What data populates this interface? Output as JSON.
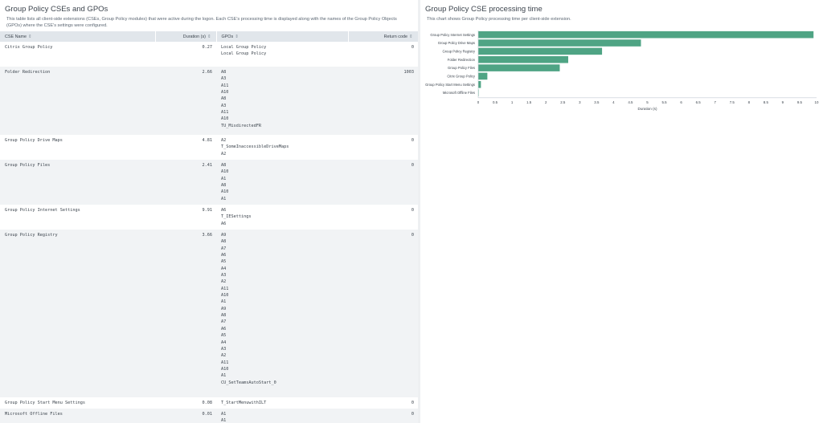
{
  "left_panel": {
    "title": "Group Policy CSEs and GPOs",
    "description": "This table lists all client-side extensions (CSEs, Group Policy modules) that were active during the logon. Each CSE's processing time is displayed along with the names of the Group Policy Objects (GPOs) where the CSE's settings were configured.",
    "columns": [
      {
        "label": "CSE Name",
        "sort_icon": "sort-icon"
      },
      {
        "label": "Duration (s)",
        "sort_icon": "sort-icon"
      },
      {
        "label": "GPOs",
        "sort_icon": "sort-icon"
      },
      {
        "label": "Return code",
        "sort_icon": "sort-icon"
      }
    ],
    "rows": [
      {
        "cse": "Citrix Group Policy",
        "duration": "0.27",
        "gpos": [
          "Local Group Policy",
          "Local Group Policy"
        ],
        "return_code": "0"
      },
      {
        "cse": "Folder Redirection",
        "duration": "2.66",
        "gpos": [
          "A8",
          "A3",
          "A11",
          "A10",
          "A8",
          "A3",
          "A11",
          "A10",
          "TU_MisdirectedFR"
        ],
        "return_code": "1003"
      },
      {
        "cse": "Group Policy Drive Maps",
        "duration": "4.81",
        "gpos": [
          "A2",
          "T_SomeInaccessibleDriveMaps",
          "A2"
        ],
        "return_code": "0"
      },
      {
        "cse": "Group Policy Files",
        "duration": "2.41",
        "gpos": [
          "A8",
          "A10",
          "A1",
          "A8",
          "A10",
          "A1"
        ],
        "return_code": "0"
      },
      {
        "cse": "Group Policy Internet Settings",
        "duration": "9.91",
        "gpos": [
          "A6",
          "T_IESettings",
          "A6"
        ],
        "return_code": "0"
      },
      {
        "cse": "Group Policy Registry",
        "duration": "3.66",
        "gpos": [
          "A9",
          "A8",
          "A7",
          "A6",
          "A5",
          "A4",
          "A3",
          "A2",
          "A11",
          "A10",
          "A1",
          "A9",
          "A8",
          "A7",
          "A6",
          "A5",
          "A4",
          "A3",
          "A2",
          "A11",
          "A10",
          "A1",
          "CU_SetTeamsAutoStart_0"
        ],
        "return_code": "0"
      },
      {
        "cse": "Group Policy Start Menu Settings",
        "duration": "0.08",
        "gpos": [
          "T_StartMenuwithILT"
        ],
        "return_code": "0"
      },
      {
        "cse": "Microsoft Offline Files",
        "duration": "0.01",
        "gpos": [
          "A1",
          "A1"
        ],
        "return_code": "0"
      }
    ]
  },
  "right_panel": {
    "title": "Group Policy CSE processing time",
    "description": "This chart shows Group Policy processing time per client-side extension."
  },
  "chart_data": {
    "type": "bar",
    "orientation": "horizontal",
    "categories": [
      "Group Policy Internet Settings",
      "Group Policy Drive Maps",
      "Group Policy Registry",
      "Folder Redirection",
      "Group Policy Files",
      "Citrix Group Policy",
      "Group Policy Start Menu Settings",
      "Microsoft Offline Files"
    ],
    "values": [
      9.91,
      4.81,
      3.66,
      2.66,
      2.41,
      0.27,
      0.08,
      0.01
    ],
    "xlabel": "Duration (s)",
    "ylabel": "",
    "xlim": [
      0,
      10
    ],
    "ticks": [
      "0",
      "0.5",
      "1",
      "1.5",
      "2",
      "2.5",
      "3",
      "3.5",
      "4",
      "4.5",
      "5",
      "5.5",
      "6",
      "6.5",
      "7",
      "7.5",
      "8",
      "8.5",
      "9",
      "9.5",
      "10"
    ],
    "bar_color": "#4fa484",
    "grid": false
  }
}
